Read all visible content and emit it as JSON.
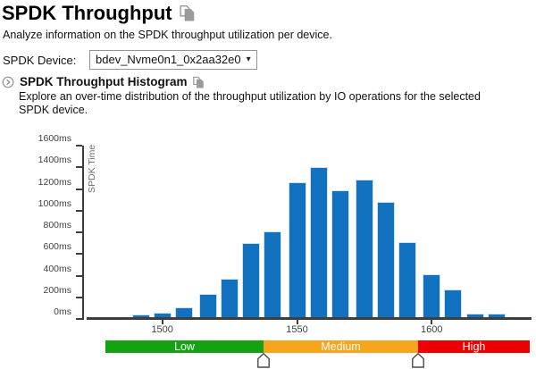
{
  "page": {
    "title": "SPDK Throughput",
    "subtitle": "Analyze information on the SPDK throughput utilization per device.",
    "device_label": "SPDK Device:",
    "device_value": "bdev_Nvme0n1_0x2aa32e0",
    "caret_glyph": "▾"
  },
  "section": {
    "title": "SPDK Throughput Histogram",
    "description": "Explore an over-time distribution of the throughput utilization by IO operations for the selected SPDK device."
  },
  "chart_data": {
    "type": "bar",
    "title": "SPDK Throughput Histogram",
    "xlabel": "",
    "ylabel": "SPDK Time",
    "x": [
      1483,
      1492,
      1500,
      1508,
      1517,
      1525,
      1533,
      1541,
      1550,
      1558,
      1566,
      1575,
      1583,
      1591,
      1600,
      1608,
      1616,
      1624
    ],
    "values": [
      20,
      40,
      60,
      110,
      230,
      370,
      700,
      810,
      1260,
      1400,
      1190,
      1290,
      1080,
      710,
      410,
      270,
      50,
      50
    ],
    "y_ticks": [
      "0ms",
      "200ms",
      "400ms",
      "600ms",
      "800ms",
      "1000ms",
      "1200ms",
      "1400ms",
      "1600ms"
    ],
    "x_ticks": [
      1500,
      1550,
      1600
    ],
    "ylim": [
      0,
      1600
    ],
    "xlim": [
      1478,
      1630
    ],
    "grid": false,
    "legend_position": "none",
    "bar_color": "#1272BF"
  },
  "slider": {
    "segments": [
      {
        "label": "Low",
        "color": "#12A212"
      },
      {
        "label": "Medium",
        "color": "#F8A41C"
      },
      {
        "label": "High",
        "color": "#EC0000"
      }
    ]
  },
  "icons": {
    "copy": "copy-pages-icon",
    "expand": "circle-chevron-right-icon",
    "caret": "caret-down-icon"
  }
}
